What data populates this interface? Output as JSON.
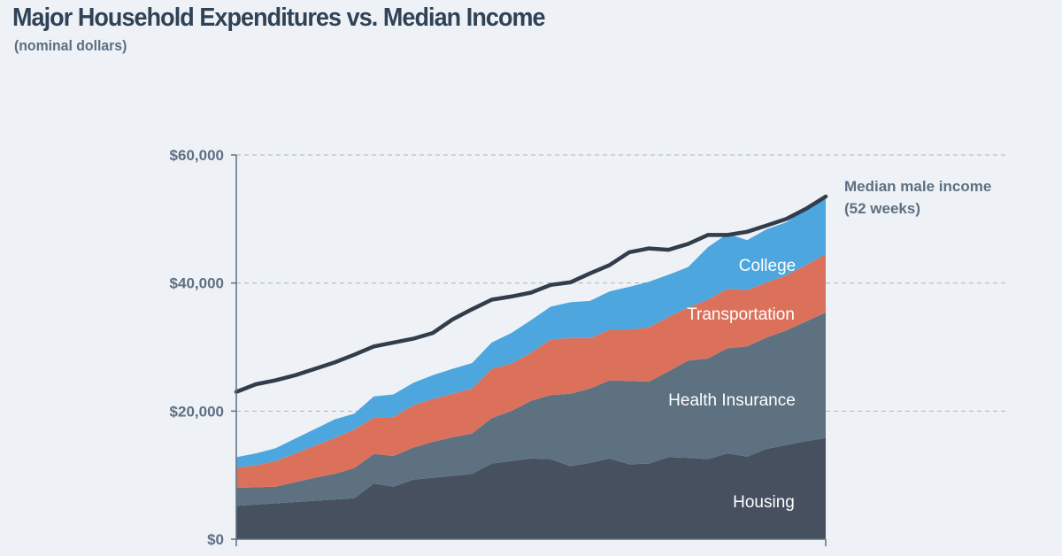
{
  "title": "Major Household Expenditures vs. Median Income",
  "subtitle": "(nominal dollars)",
  "chart_data": {
    "type": "area",
    "stacked": true,
    "title": "Major Household Expenditures vs. Median Income",
    "subtitle": "(nominal dollars)",
    "ylim": [
      0,
      60000
    ],
    "y_ticks": [
      {
        "value": 0,
        "label": "$0"
      },
      {
        "value": 20000,
        "label": "$20,000"
      },
      {
        "value": 40000,
        "label": "$40,000"
      },
      {
        "value": 60000,
        "label": "$60,000"
      }
    ],
    "points": 31,
    "series": [
      {
        "name": "Housing",
        "label": "Housing",
        "color": "#47505f",
        "values": [
          5200,
          5400,
          5600,
          5800,
          6000,
          6200,
          6400,
          8700,
          8200,
          9300,
          9600,
          9900,
          10200,
          11800,
          12200,
          12600,
          12500,
          11400,
          11900,
          12600,
          11700,
          11800,
          12800,
          12700,
          12500,
          13400,
          12900,
          14100,
          14700,
          15300,
          15800
        ]
      },
      {
        "name": "Health Insurance",
        "label": "Health Insurance",
        "color": "#5d7180",
        "values": [
          2800,
          2700,
          2600,
          3100,
          3600,
          4000,
          4700,
          4600,
          4800,
          5000,
          5600,
          6000,
          6300,
          7100,
          7800,
          9000,
          10000,
          11300,
          11600,
          12200,
          13000,
          12800,
          13400,
          15200,
          15700,
          16400,
          17200,
          17400,
          17900,
          18700,
          19600
        ]
      },
      {
        "name": "Transportation",
        "label": "Transportation",
        "color": "#dc715b",
        "values": [
          3200,
          3400,
          4000,
          4500,
          5000,
          5600,
          6000,
          5700,
          6100,
          6600,
          6700,
          6800,
          7000,
          7700,
          7400,
          7500,
          8700,
          8700,
          7900,
          7900,
          8000,
          8500,
          8500,
          8300,
          9200,
          9300,
          8800,
          8600,
          8600,
          8800,
          9100
        ]
      },
      {
        "name": "College",
        "label": "College",
        "color": "#4da6de",
        "values": [
          1600,
          1900,
          2000,
          2300,
          2600,
          2900,
          2500,
          3300,
          3500,
          3500,
          3700,
          3900,
          4000,
          4100,
          4800,
          5100,
          5100,
          5600,
          5800,
          6000,
          6700,
          7100,
          6600,
          6300,
          8200,
          8600,
          7800,
          8300,
          8300,
          8900,
          8600
        ]
      }
    ],
    "income_line": {
      "name": "Median male income",
      "label_line1": "Median male income",
      "label_line2": "(52 weeks)",
      "color": "#313d4b",
      "values": [
        23000,
        24200,
        24800,
        25600,
        26600,
        27600,
        28800,
        30100,
        30700,
        31300,
        32200,
        34300,
        35900,
        37400,
        37900,
        38500,
        39700,
        40100,
        41500,
        42800,
        44800,
        45400,
        45200,
        46100,
        47500,
        47500,
        48000,
        49000,
        50000,
        51600,
        53500
      ]
    }
  }
}
